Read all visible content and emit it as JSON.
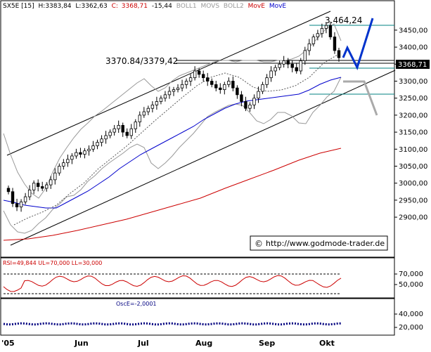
{
  "header": {
    "symbol": "SX5E [15]",
    "high": "H:3383,84",
    "low": "L:3362,63",
    "close_label": "C:",
    "close": "3368,71",
    "change": "-15,44",
    "ind1": "BOLL1",
    "ind2": "MOVS",
    "ind3": "BOLL2",
    "ind4": "MovE",
    "ind5": "MovE"
  },
  "annotations": {
    "peak_label": "3.464,24",
    "support_label": "3370.84/3379,42",
    "last_price": "3368,71",
    "watermark": "http://www.godmode-trader.de",
    "watermark_icon": "copyright-icon"
  },
  "price_axis": {
    "ticks": [
      "3450,00",
      "3400,00",
      "3350,00",
      "3300,00",
      "3250,00",
      "3200,00",
      "3150,00",
      "3100,00",
      "3050,00",
      "3000,00",
      "2950,00",
      "2900,00"
    ]
  },
  "rsi_panel": {
    "label": "RSI=49,844  UL=70,000  LL=30,000",
    "ticks": [
      "70,000",
      "50,000"
    ]
  },
  "osc_panel": {
    "label": "OscE=-2,0001",
    "ticks": [
      "40,000",
      "20,000"
    ]
  },
  "time_axis": {
    "labels": [
      "'05",
      "Jun",
      "Jul",
      "Aug",
      "Sep",
      "Okt"
    ]
  },
  "colors": {
    "candle": "#000000",
    "ma_blue": "#0000cc",
    "ma_red": "#cc0000",
    "bollinger": "#999999",
    "projection_blue": "#0033cc",
    "projection_gray": "#aaaaaa",
    "rsi_line": "#cc0000",
    "osc_line": "#000080",
    "change_red": "#cc0000",
    "move_red": "#cc0000",
    "move_blue": "#0000cc"
  },
  "chart_data": [
    {
      "type": "candlestick",
      "ylim": [
        2880,
        3490
      ],
      "x_range": [
        "2005-05-02",
        "2005-10-14"
      ],
      "close_approx": [
        2975,
        2940,
        2930,
        2945,
        2960,
        2980,
        3000,
        2990,
        2985,
        2995,
        3010,
        3030,
        3050,
        3060,
        3070,
        3080,
        3090,
        3085,
        3095,
        3100,
        3110,
        3120,
        3130,
        3140,
        3150,
        3160,
        3170,
        3150,
        3140,
        3160,
        3180,
        3200,
        3210,
        3220,
        3230,
        3240,
        3250,
        3260,
        3270,
        3275,
        3280,
        3290,
        3300,
        3310,
        3330,
        3320,
        3310,
        3300,
        3290,
        3280,
        3275,
        3290,
        3300,
        3280,
        3260,
        3240,
        3220,
        3230,
        3250,
        3270,
        3290,
        3310,
        3330,
        3340,
        3350,
        3360,
        3350,
        3340,
        3330,
        3360,
        3390,
        3410,
        3430,
        3440,
        3455,
        3464,
        3430,
        3390,
        3369
      ],
      "support_levels": [
        3370.84,
        3379.42
      ],
      "peak": 3464.24,
      "last": 3368.71
    },
    {
      "type": "line",
      "name": "RSI",
      "ylim": [
        0,
        100
      ],
      "upper_level": 70,
      "lower_level": 30,
      "last": 49.844
    },
    {
      "type": "line",
      "name": "OscE",
      "last": -2.0001
    }
  ]
}
